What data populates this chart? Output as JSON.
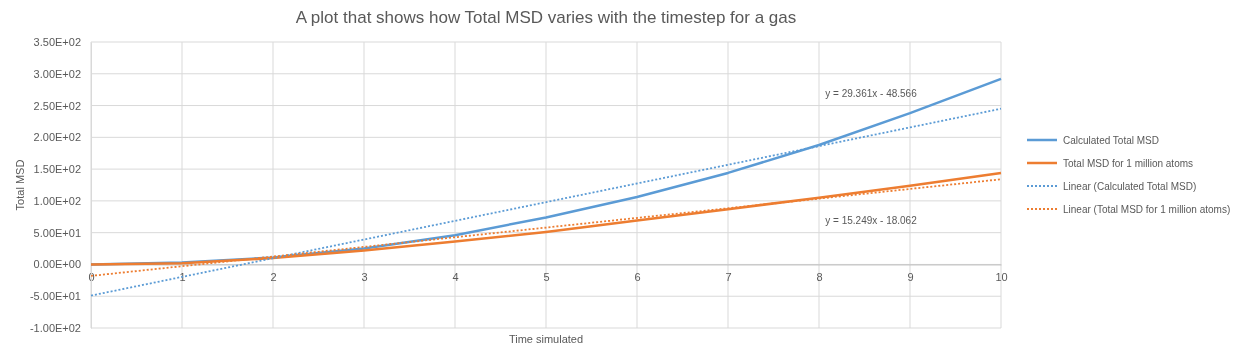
{
  "chart_data": {
    "type": "line",
    "title": "A plot that shows how Total MSD varies with the timestep for a gas",
    "xlabel": "Time simulated",
    "ylabel": "Total MSD",
    "xlim": [
      0,
      10
    ],
    "xticks": [
      0,
      1,
      2,
      3,
      4,
      5,
      6,
      7,
      8,
      9,
      10
    ],
    "ylim": [
      -100,
      350
    ],
    "yticks": [
      {
        "value": -100,
        "label": "-1.00E+02"
      },
      {
        "value": -50,
        "label": "-5.00E+01"
      },
      {
        "value": 0,
        "label": "0.00E+00"
      },
      {
        "value": 50,
        "label": "5.00E+01"
      },
      {
        "value": 100,
        "label": "1.00E+02"
      },
      {
        "value": 150,
        "label": "1.50E+02"
      },
      {
        "value": 200,
        "label": "2.00E+02"
      },
      {
        "value": 250,
        "label": "2.50E+02"
      },
      {
        "value": 300,
        "label": "3.00E+02"
      },
      {
        "value": 350,
        "label": "3.50E+02"
      }
    ],
    "grid": true,
    "legend": "right",
    "marker": "none",
    "series": [
      {
        "name": "Calculated Total MSD",
        "color": "#5b9bd5",
        "line_style": "solid",
        "x": [
          0,
          1,
          2,
          3,
          4,
          5,
          6,
          7,
          8,
          9,
          10
        ],
        "values": [
          0,
          3,
          11,
          25,
          46,
          74,
          106,
          144,
          188,
          238,
          292
        ]
      },
      {
        "name": "Total MSD for 1 million atoms",
        "color": "#ed7d31",
        "line_style": "solid",
        "x": [
          0,
          1,
          2,
          3,
          4,
          5,
          6,
          7,
          8,
          9,
          10
        ],
        "values": [
          0,
          2,
          10,
          22,
          36,
          51,
          69,
          87,
          105,
          124,
          144
        ]
      },
      {
        "name": "Linear (Calculated Total MSD)",
        "color": "#5b9bd5",
        "line_style": "dotted",
        "x": [
          0,
          10
        ],
        "values": [
          -49,
          245
        ]
      },
      {
        "name": "Linear (Total MSD for 1 million atoms)",
        "color": "#ed7d31",
        "line_style": "dotted",
        "x": [
          0,
          10
        ],
        "values": [
          -18,
          134
        ]
      }
    ],
    "annotations": [
      "y = 29.361x - 48.566",
      "y = 15.249x - 18.062"
    ]
  }
}
